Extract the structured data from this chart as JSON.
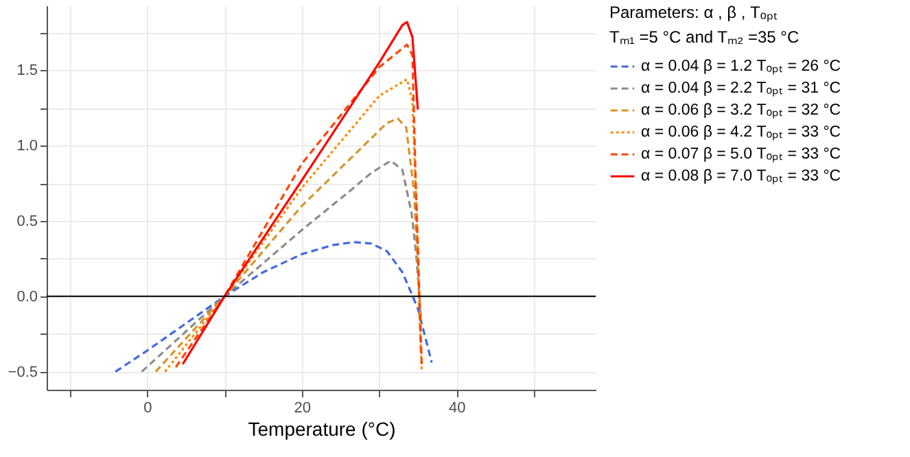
{
  "chart_data": {
    "type": "line",
    "xlabel": "Temperature (°C)",
    "legend_title": "Parameters:  α , β , Tₒₚₜ\nTₘ₁ =5 °C and  Tₘ₂ =35 °C",
    "xlim": [
      -13,
      58
    ],
    "ylim": [
      -0.62,
      1.93
    ],
    "xticks": [
      {
        "value": -10,
        "label": null
      },
      0,
      {
        "value": 10,
        "label": null
      },
      20,
      {
        "value": 30,
        "label": null
      },
      40,
      {
        "value": 50,
        "label": null
      }
    ],
    "yticks": [
      {
        "value": -0.5,
        "label": "−0.5"
      },
      {
        "value": -0.25,
        "label": null
      },
      {
        "value": 0,
        "label": "0.0"
      },
      {
        "value": 0.25,
        "label": null
      },
      {
        "value": 0.5,
        "label": "0.5"
      },
      {
        "value": 0.75,
        "label": null
      },
      {
        "value": 1,
        "label": "1.0"
      },
      {
        "value": 1.25,
        "label": null
      },
      {
        "value": 1.5,
        "label": "1.5"
      },
      {
        "value": 1.75,
        "label": null
      }
    ],
    "grid": true,
    "legend": "right",
    "ref_lines": [
      {
        "axis": "y",
        "value": 0,
        "color": "#000000"
      }
    ],
    "series": [
      {
        "name": "α = 0.04 β = 1.2 Tₒₚₜ = 26 °C",
        "color": "#4169e1",
        "line_style": "dashed",
        "x": [
          -4.1,
          0,
          5,
          10,
          15,
          20,
          24,
          26.7,
          29,
          31,
          33,
          35,
          36.8
        ],
        "values": [
          -0.5,
          -0.36,
          -0.18,
          0,
          0.16,
          0.28,
          0.34,
          0.36,
          0.35,
          0.3,
          0.16,
          -0.08,
          -0.44
        ]
      },
      {
        "name": "α = 0.04 β = 2.2 Tₒₚₜ = 31 °C",
        "color": "#8c8c8c",
        "line_style": "dashed",
        "x": [
          -0.7,
          10,
          20,
          26,
          29,
          31.5,
          33,
          34.2,
          34.8,
          35.2,
          35.4
        ],
        "values": [
          -0.5,
          0,
          0.44,
          0.69,
          0.82,
          0.9,
          0.84,
          0.55,
          0.27,
          0,
          -0.15
        ]
      },
      {
        "name": "α = 0.06 β = 3.2 Tₒₚₜ = 32 °C",
        "color": "#d4952a",
        "line_style": "dashed",
        "x": [
          1.1,
          10,
          20,
          28,
          31,
          32.4,
          33.5,
          34.5,
          35,
          35.4
        ],
        "values": [
          -0.5,
          0,
          0.6,
          1.0,
          1.15,
          1.18,
          1.12,
          0.7,
          0.2,
          -0.4
        ]
      },
      {
        "name": "α = 0.06 β = 4.2 Tₒₚₜ = 33 °C",
        "color": "#ff8c00",
        "line_style": "dotted",
        "x": [
          2.3,
          10,
          20,
          30,
          33.6,
          34.3,
          34.8,
          35.2,
          35.5
        ],
        "values": [
          -0.5,
          0,
          0.72,
          1.33,
          1.44,
          1.3,
          0.6,
          0,
          -0.5
        ]
      },
      {
        "name": "α = 0.07 β = 5.0 Tₒₚₜ = 33 °C",
        "color": "#ff4500",
        "line_style": "dashed",
        "x": [
          3.7,
          10,
          20,
          30,
          33.6,
          34.3,
          34.7,
          35.2,
          35.5
        ],
        "values": [
          -0.47,
          0,
          0.88,
          1.52,
          1.67,
          1.6,
          0.8,
          0,
          -0.45
        ]
      },
      {
        "name": "α = 0.08 β = 7.0 Tₒₚₜ = 33 °C",
        "color": "#ff0000",
        "line_style": "solid",
        "x": [
          4.6,
          10,
          20,
          30,
          33,
          33.6,
          34.3,
          35.0
        ],
        "values": [
          -0.45,
          0,
          0.77,
          1.55,
          1.8,
          1.82,
          1.72,
          1.24
        ]
      }
    ]
  }
}
